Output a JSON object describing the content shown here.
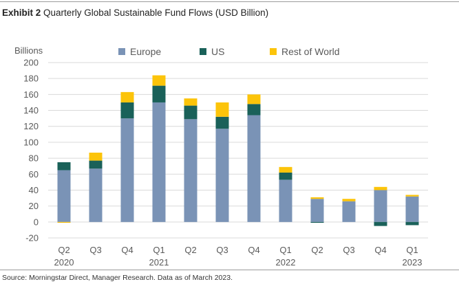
{
  "header": {
    "lead": "Exhibit 2",
    "title": "Quarterly Global Sustainable Fund Flows (USD Billion)"
  },
  "footer": {
    "source": "Source: Morningstar Direct, Manager Research. Data as of March 2023."
  },
  "colors": {
    "europe": "#7a93b6",
    "us": "#1a6159",
    "rest_of_world": "#fcc40a",
    "grid": "#d9d9d9",
    "axis_text": "#595959"
  },
  "chart_data": {
    "type": "bar",
    "stacked": true,
    "ylabel": "Billions",
    "ylim": [
      -20,
      200
    ],
    "yticks": [
      -20,
      0,
      20,
      40,
      60,
      80,
      100,
      120,
      140,
      160,
      180,
      200
    ],
    "grid": true,
    "legend_position": "top",
    "categories": [
      "Q2",
      "Q3",
      "Q4",
      "Q1",
      "Q2",
      "Q3",
      "Q4",
      "Q1",
      "Q2",
      "Q3",
      "Q4",
      "Q1"
    ],
    "category_years": [
      "2020",
      "",
      "",
      "2021",
      "",
      "",
      "",
      "2022",
      "",
      "",
      "",
      "2023"
    ],
    "series": [
      {
        "name": "Europe",
        "color": "#7a93b6",
        "values": [
          65,
          67,
          130,
          150,
          129,
          117,
          134,
          53,
          29,
          26,
          40,
          32
        ]
      },
      {
        "name": "US",
        "color": "#1a6159",
        "values": [
          10,
          10,
          20,
          21,
          17,
          15,
          14,
          9,
          -1,
          0,
          -5,
          -4
        ]
      },
      {
        "name": "Rest of World",
        "color": "#fcc40a",
        "values": [
          -1,
          10,
          13,
          13,
          9,
          18,
          12,
          7,
          2,
          3,
          4,
          2
        ]
      }
    ]
  }
}
